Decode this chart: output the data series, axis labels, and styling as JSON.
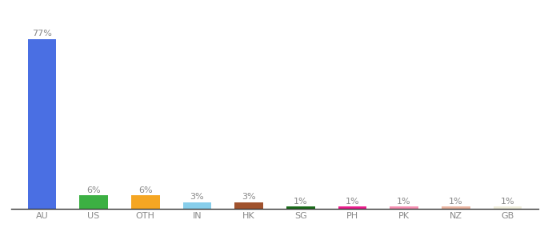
{
  "categories": [
    "AU",
    "US",
    "OTH",
    "IN",
    "HK",
    "SG",
    "PH",
    "PK",
    "NZ",
    "GB"
  ],
  "values": [
    77,
    6,
    6,
    3,
    3,
    1,
    1,
    1,
    1,
    1
  ],
  "bar_colors": [
    "#4a6fe3",
    "#3cb043",
    "#f5a623",
    "#87ceeb",
    "#a0522d",
    "#1a6b1a",
    "#e91e8c",
    "#f48fb1",
    "#e8b4a0",
    "#f0eedc"
  ],
  "label_fontsize": 8.0,
  "tick_fontsize": 8.0,
  "label_color": "#888888",
  "tick_color": "#888888",
  "background_color": "#ffffff",
  "ylim": [
    0,
    87
  ],
  "bar_width": 0.55
}
